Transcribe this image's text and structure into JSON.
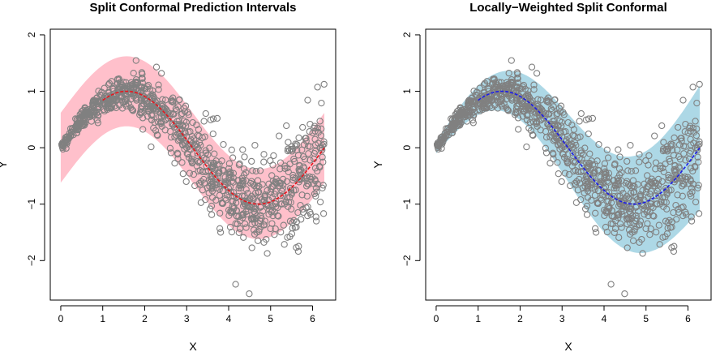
{
  "chart_data": [
    {
      "type": "scatter",
      "title": "Split Conformal Prediction Intervals",
      "xlabel": "X",
      "ylabel": "Y",
      "xlim": [
        -0.25,
        6.55
      ],
      "ylim": [
        -2.7,
        2.1
      ],
      "xticks": [
        "0",
        "1",
        "2",
        "3",
        "4",
        "5",
        "6"
      ],
      "yticks": [
        "-2",
        "-1",
        "0",
        "1",
        "2"
      ],
      "band": {
        "kind": "constant",
        "halfwidth": 0.62,
        "color": "#ffc0cb",
        "x_range": [
          0,
          6.28
        ]
      },
      "fit_line": {
        "color": "#e8141c",
        "function": "sin(x)"
      },
      "points": {
        "n": 1000,
        "color": "#808080",
        "function": "sin(x) + noise"
      }
    },
    {
      "type": "scatter",
      "title": "Locally−Weighted Split Conformal",
      "xlabel": "X",
      "ylabel": "Y",
      "xlim": [
        -0.25,
        6.55
      ],
      "ylim": [
        -2.7,
        2.1
      ],
      "xticks": [
        "0",
        "1",
        "2",
        "3",
        "4",
        "5",
        "6"
      ],
      "yticks": [
        "-2",
        "-1",
        "0",
        "1",
        "2"
      ],
      "band": {
        "kind": "heteroscedastic",
        "color": "#add8e6",
        "x_range": [
          0,
          6.28
        ]
      },
      "fit_line": {
        "color": "#1c1ce8",
        "function": "sin(x)"
      },
      "points": {
        "n": 1000,
        "color": "#808080",
        "function": "sin(x) + noise"
      }
    }
  ]
}
